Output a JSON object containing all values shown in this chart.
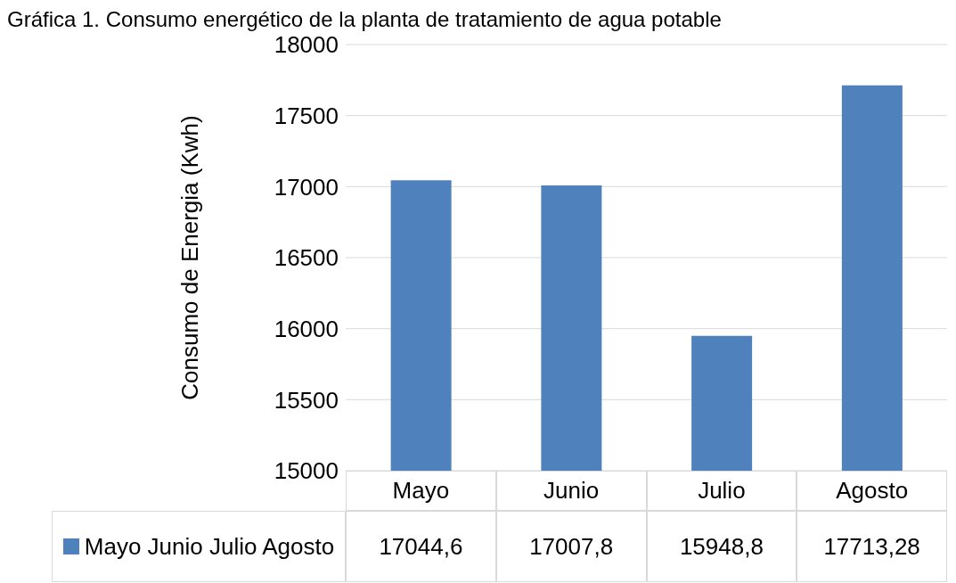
{
  "chart_data": {
    "type": "bar",
    "title": "Gráfica 1. Consumo energético de la planta de tratamiento de agua potable",
    "ylabel": "Consumo de Energia (Kwh)",
    "categories": [
      "Mayo",
      "Junio",
      "Julio",
      "Agosto"
    ],
    "series": [
      {
        "name": "Mayo Junio  Julio Agosto",
        "color": "#4f81bd",
        "values": [
          17044.6,
          17007.8,
          15948.8,
          17713.28
        ],
        "value_labels": [
          "17044,6",
          "17007,8",
          "15948,8",
          "17713,28"
        ]
      }
    ],
    "ylim": [
      15000,
      18000
    ],
    "yticks": [
      15000,
      15500,
      16000,
      16500,
      17000,
      17500,
      18000
    ],
    "grid": "y",
    "legend": "bottom"
  }
}
